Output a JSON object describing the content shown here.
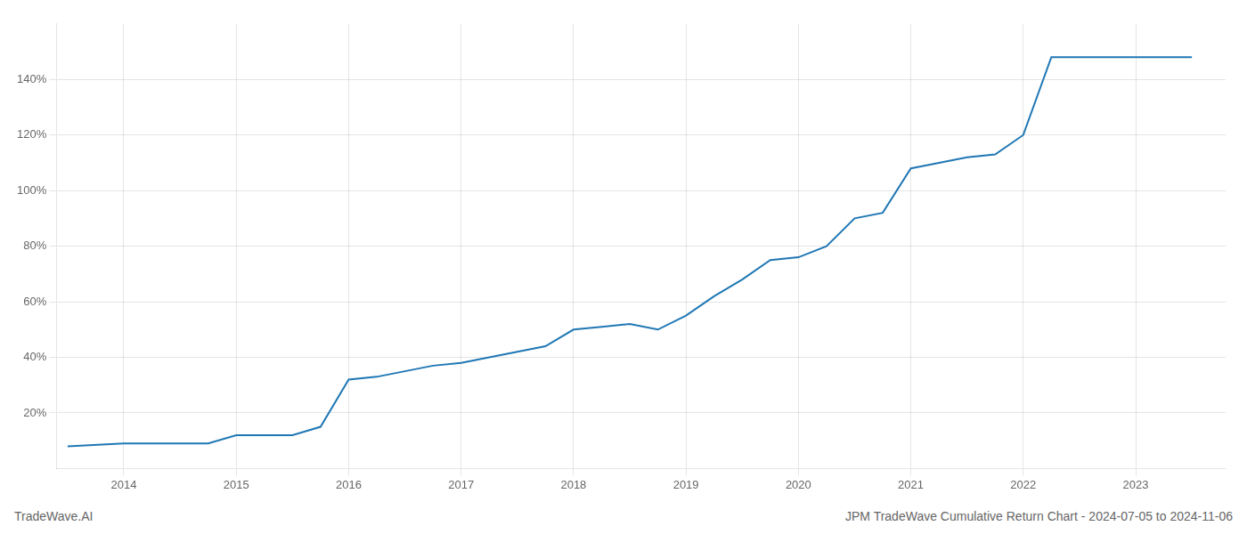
{
  "chart_data": {
    "type": "line",
    "annotations": [
      "TradeWave.AI",
      "JPM TradeWave Cumulative Return Chart - 2024-07-05 to 2024-11-06"
    ],
    "x": [
      2013.5,
      2014.0,
      2014.25,
      2014.5,
      2014.75,
      2015.0,
      2015.25,
      2015.5,
      2015.75,
      2016.0,
      2016.25,
      2016.5,
      2016.75,
      2017.0,
      2017.25,
      2017.5,
      2017.75,
      2018.0,
      2018.25,
      2018.5,
      2018.75,
      2019.0,
      2019.25,
      2019.5,
      2019.75,
      2020.0,
      2020.25,
      2020.5,
      2020.75,
      2021.0,
      2021.25,
      2021.5,
      2021.75,
      2022.0,
      2022.25,
      2022.5,
      2022.75,
      2023.0,
      2023.25,
      2023.5
    ],
    "values": [
      8,
      9,
      9,
      9,
      9,
      12,
      12,
      12,
      15,
      32,
      33,
      35,
      37,
      38,
      40,
      42,
      44,
      50,
      51,
      52,
      50,
      55,
      62,
      68,
      75,
      76,
      80,
      90,
      92,
      108,
      110,
      112,
      113,
      120,
      148,
      148,
      148,
      148,
      148,
      148
    ],
    "color": "#1f77b4",
    "xlim": [
      2013.4,
      2023.8
    ],
    "xticks": [
      2014,
      2015,
      2016,
      2017,
      2018,
      2019,
      2020,
      2021,
      2022,
      2023
    ],
    "ylim": [
      0,
      160
    ],
    "yticks": [
      {
        "value": 20,
        "label": "20%"
      },
      {
        "value": 40,
        "label": "40%"
      },
      {
        "value": 60,
        "label": "60%"
      },
      {
        "value": 80,
        "label": "80%"
      },
      {
        "value": 100,
        "label": "100%"
      },
      {
        "value": 120,
        "label": "120%"
      },
      {
        "value": 140,
        "label": "140%"
      }
    ],
    "grid": true
  }
}
